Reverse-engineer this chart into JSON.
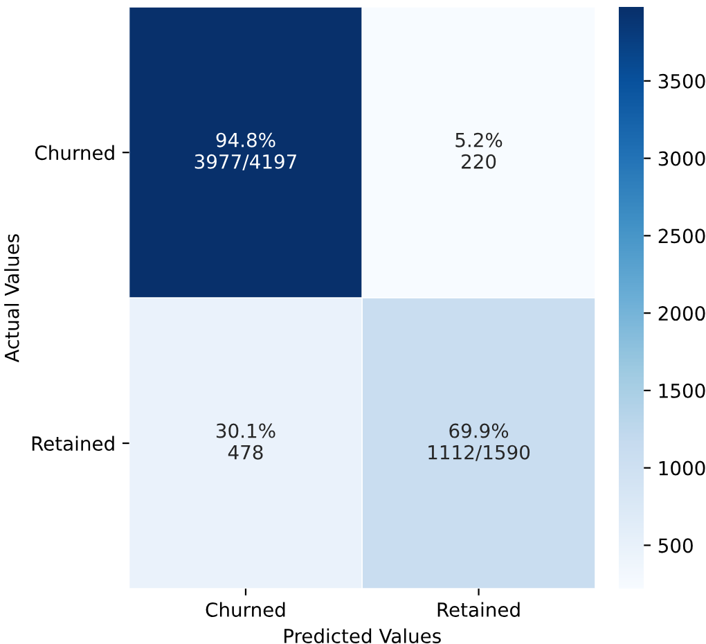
{
  "chart_data": {
    "type": "heatmap",
    "xlabel": "Predicted Values",
    "ylabel": "Actual Values",
    "categories": [
      "Churned",
      "Retained"
    ],
    "y_categories": [
      "Churned",
      "Retained"
    ],
    "cells": [
      [
        3977,
        220
      ],
      [
        478,
        1112
      ]
    ],
    "cell_labels": [
      [
        "94.8%\n3977/4197",
        "5.2%\n220"
      ],
      [
        "30.1%\n478",
        "69.9%\n1112/1590"
      ]
    ],
    "clim": [
      220,
      3977
    ],
    "cticks": [
      500,
      1000,
      1500,
      2000,
      2500,
      3000,
      3500
    ]
  }
}
